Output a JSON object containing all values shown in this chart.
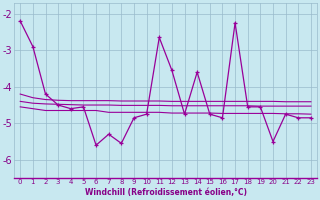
{
  "xlabel": "Windchill (Refroidissement éolien,°C)",
  "x": [
    0,
    1,
    2,
    3,
    4,
    5,
    6,
    7,
    8,
    9,
    10,
    11,
    12,
    13,
    14,
    15,
    16,
    17,
    18,
    19,
    20,
    21,
    22,
    23
  ],
  "series": {
    "main": [
      -2.2,
      -2.9,
      -4.2,
      -4.5,
      -4.6,
      -4.55,
      -5.6,
      -5.3,
      -5.55,
      -4.85,
      -4.75,
      -2.65,
      -3.55,
      -4.75,
      -3.6,
      -4.75,
      -4.85,
      -2.25,
      -4.55,
      -4.55,
      -5.5,
      -4.75,
      -4.85,
      -4.85
    ],
    "trend1": [
      -4.55,
      -4.6,
      -4.65,
      -4.65,
      -4.65,
      -4.65,
      -4.65,
      -4.7,
      -4.7,
      -4.7,
      -4.7,
      -4.7,
      -4.72,
      -4.72,
      -4.72,
      -4.72,
      -4.73,
      -4.73,
      -4.73,
      -4.73,
      -4.73,
      -4.74,
      -4.74,
      -4.75
    ],
    "trend2": [
      -4.4,
      -4.45,
      -4.47,
      -4.48,
      -4.49,
      -4.5,
      -4.5,
      -4.5,
      -4.51,
      -4.51,
      -4.51,
      -4.51,
      -4.52,
      -4.52,
      -4.52,
      -4.52,
      -4.52,
      -4.52,
      -4.52,
      -4.53,
      -4.53,
      -4.53,
      -4.53,
      -4.53
    ],
    "trend3": [
      -4.2,
      -4.3,
      -4.35,
      -4.37,
      -4.38,
      -4.38,
      -4.38,
      -4.38,
      -4.39,
      -4.39,
      -4.39,
      -4.39,
      -4.4,
      -4.4,
      -4.4,
      -4.4,
      -4.4,
      -4.4,
      -4.4,
      -4.4,
      -4.4,
      -4.41,
      -4.41,
      -4.41
    ]
  },
  "line_color": "#990099",
  "bg_color": "#c8e8f0",
  "grid_color": "#99bbcc",
  "ylim": [
    -6.5,
    -1.7
  ],
  "yticks": [
    -6,
    -5,
    -4,
    -3,
    -2
  ],
  "xlim": [
    -0.5,
    23.5
  ],
  "tick_color": "#880088",
  "label_color": "#880088"
}
